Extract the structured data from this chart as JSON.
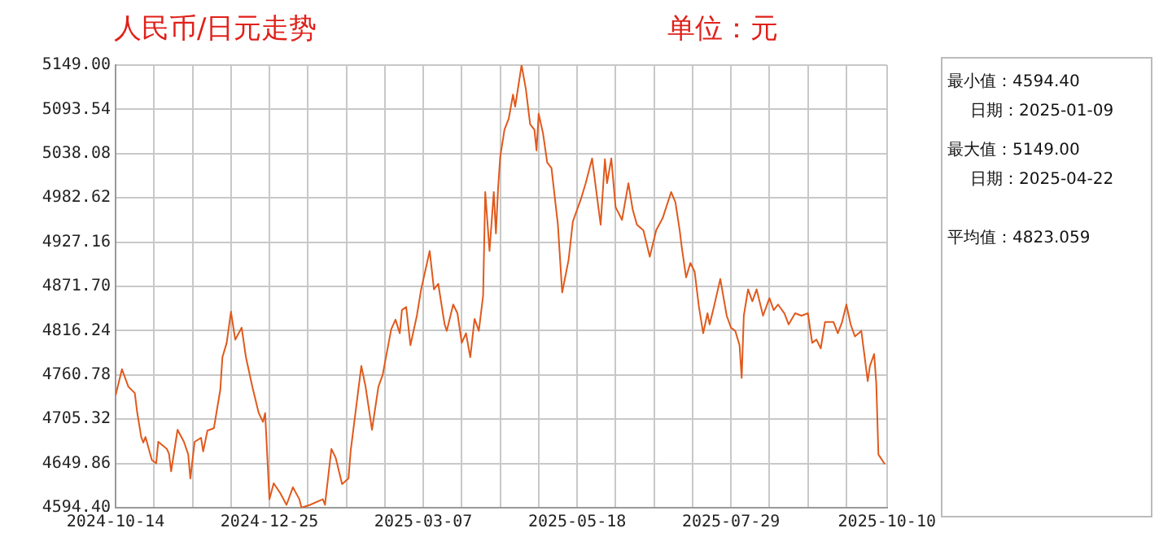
{
  "chart_data": {
    "type": "line",
    "title": "人民币/日元走势",
    "subtitle": "单位：元",
    "annotations": [
      "最小值：4594.40",
      "日期：2025-01-09",
      "最大值：5149.00",
      "日期：2025-04-22",
      "平均值：4823.059"
    ],
    "x": [
      "2024-10-14",
      "2024-10-17",
      "2024-10-20",
      "2024-10-23",
      "2024-10-24",
      "2024-10-26",
      "2024-10-27",
      "2024-10-28",
      "2024-10-31",
      "2024-11-02",
      "2024-11-03",
      "2024-11-07",
      "2024-11-08",
      "2024-11-09",
      "2024-11-12",
      "2024-11-15",
      "2024-11-17",
      "2024-11-18",
      "2024-11-20",
      "2024-11-23",
      "2024-11-24",
      "2024-11-26",
      "2024-11-29",
      "2024-12-02",
      "2024-12-03",
      "2024-12-05",
      "2024-12-07",
      "2024-12-09",
      "2024-12-12",
      "2024-12-14",
      "2024-12-17",
      "2024-12-20",
      "2024-12-22",
      "2024-12-23",
      "2024-12-25",
      "2024-12-27",
      "2024-12-30",
      "2025-01-02",
      "2025-01-05",
      "2025-01-08",
      "2025-01-09",
      "2025-01-13",
      "2025-01-19",
      "2025-01-20",
      "2025-01-23",
      "2025-01-25",
      "2025-01-28",
      "2025-01-31",
      "2025-02-01",
      "2025-02-06",
      "2025-02-08",
      "2025-02-11",
      "2025-02-14",
      "2025-02-16",
      "2025-02-20",
      "2025-02-22",
      "2025-02-24",
      "2025-02-25",
      "2025-02-27",
      "2025-03-01",
      "2025-03-04",
      "2025-03-06",
      "2025-03-10",
      "2025-03-12",
      "2025-03-14",
      "2025-03-17",
      "2025-03-18",
      "2025-03-21",
      "2025-03-23",
      "2025-03-25",
      "2025-03-27",
      "2025-03-29",
      "2025-03-31",
      "2025-04-02",
      "2025-04-04",
      "2025-04-05",
      "2025-04-07",
      "2025-04-09",
      "2025-04-10",
      "2025-04-11",
      "2025-04-12",
      "2025-04-14",
      "2025-04-16",
      "2025-04-18",
      "2025-04-19",
      "2025-04-22",
      "2025-04-24",
      "2025-04-26",
      "2025-04-28",
      "2025-04-29",
      "2025-04-30",
      "2025-05-02",
      "2025-05-04",
      "2025-05-06",
      "2025-05-09",
      "2025-05-11",
      "2025-05-14",
      "2025-05-16",
      "2025-05-20",
      "2025-05-22",
      "2025-05-25",
      "2025-05-29",
      "2025-05-31",
      "2025-06-01",
      "2025-06-03",
      "2025-06-05",
      "2025-06-08",
      "2025-06-11",
      "2025-06-13",
      "2025-06-15",
      "2025-06-18",
      "2025-06-21",
      "2025-06-24",
      "2025-06-27",
      "2025-07-01",
      "2025-07-03",
      "2025-07-05",
      "2025-07-06",
      "2025-07-08",
      "2025-07-10",
      "2025-07-12",
      "2025-07-14",
      "2025-07-16",
      "2025-07-18",
      "2025-07-19",
      "2025-07-21",
      "2025-07-24",
      "2025-07-27",
      "2025-07-29",
      "2025-07-31",
      "2025-08-02",
      "2025-08-03",
      "2025-08-04",
      "2025-08-06",
      "2025-08-08",
      "2025-08-10",
      "2025-08-13",
      "2025-08-16",
      "2025-08-18",
      "2025-08-20",
      "2025-08-23",
      "2025-08-25",
      "2025-08-28",
      "2025-08-31",
      "2025-09-03",
      "2025-09-05",
      "2025-09-07",
      "2025-09-09",
      "2025-09-11",
      "2025-09-15",
      "2025-09-17",
      "2025-09-19",
      "2025-09-21",
      "2025-09-23",
      "2025-09-25",
      "2025-09-28",
      "2025-10-01",
      "2025-10-02",
      "2025-10-04",
      "2025-10-05",
      "2025-10-06",
      "2025-10-09"
    ],
    "series": [
      {
        "color": "#e05a1c",
        "values": [
          4735,
          4768,
          4746,
          4738,
          4716,
          4683,
          4676,
          4683,
          4654,
          4650,
          4677,
          4668,
          4662,
          4640,
          4692,
          4677,
          4661,
          4631,
          4677,
          4682,
          4665,
          4691,
          4694,
          4742,
          4783,
          4801,
          4840,
          4805,
          4820,
          4783,
          4746,
          4713,
          4702,
          4713,
          4605,
          4625,
          4613,
          4598,
          4620,
          4605,
          4594.4,
          4598,
          4605,
          4598,
          4668,
          4657,
          4624,
          4631,
          4665,
          4772,
          4746,
          4692,
          4746,
          4761,
          4818,
          4830,
          4813,
          4842,
          4846,
          4798,
          4835,
          4868,
          4916,
          4868,
          4875,
          4824,
          4816,
          4849,
          4838,
          4801,
          4813,
          4783,
          4831,
          4816,
          4860,
          4990,
          4916,
          4990,
          4938,
          4994,
          5034,
          5068,
          5082,
          5112,
          5097,
          5149,
          5119,
          5075,
          5068,
          5042,
          5088,
          5064,
          5027,
          5020,
          4949,
          4864,
          4905,
          4953,
          4983,
          5001,
          5032,
          4949,
          5031,
          5001,
          5032,
          4971,
          4955,
          5001,
          4968,
          4949,
          4942,
          4909,
          4942,
          4957,
          4990,
          4977,
          4942,
          4920,
          4883,
          4901,
          4890,
          4846,
          4813,
          4838,
          4824,
          4846,
          4881,
          4835,
          4820,
          4816,
          4798,
          4757,
          4835,
          4868,
          4853,
          4868,
          4835,
          4857,
          4842,
          4849,
          4838,
          4824,
          4838,
          4835,
          4838,
          4801,
          4805,
          4794,
          4827,
          4827,
          4813,
          4827,
          4849,
          4824,
          4809,
          4816,
          4753,
          4772,
          4787,
          4750,
          4661,
          4649
        ]
      }
    ],
    "xlim": [
      "2024-10-14",
      "2025-10-10"
    ],
    "xticks": [
      {
        "value": "2024-10-14",
        "label": "2024-10-14"
      },
      {
        "value": "2024-11-01",
        "label": null
      },
      {
        "value": "2024-11-19",
        "label": null
      },
      {
        "value": "2024-12-07",
        "label": null
      },
      {
        "value": "2024-12-25",
        "label": "2024-12-25"
      },
      {
        "value": "2025-01-12",
        "label": null
      },
      {
        "value": "2025-01-30",
        "label": null
      },
      {
        "value": "2025-02-17",
        "label": null
      },
      {
        "value": "2025-03-07",
        "label": "2025-03-07"
      },
      {
        "value": "2025-03-25",
        "label": null
      },
      {
        "value": "2025-04-12",
        "label": null
      },
      {
        "value": "2025-04-30",
        "label": null
      },
      {
        "value": "2025-05-18",
        "label": "2025-05-18"
      },
      {
        "value": "2025-06-05",
        "label": null
      },
      {
        "value": "2025-06-23",
        "label": null
      },
      {
        "value": "2025-07-11",
        "label": null
      },
      {
        "value": "2025-07-29",
        "label": "2025-07-29"
      },
      {
        "value": "2025-08-16",
        "label": null
      },
      {
        "value": "2025-09-03",
        "label": null
      },
      {
        "value": "2025-09-21",
        "label": null
      },
      {
        "value": "2025-10-10",
        "label": "2025-10-10"
      }
    ],
    "ylim": [
      4594.4,
      5149
    ],
    "yticks": [
      {
        "value": 4594.4,
        "label": "4594.40"
      },
      {
        "value": 4649.86,
        "label": "4649.86"
      },
      {
        "value": 4705.32,
        "label": "4705.32"
      },
      {
        "value": 4760.78,
        "label": "4760.78"
      },
      {
        "value": 4816.24,
        "label": "4816.24"
      },
      {
        "value": 4871.7,
        "label": "4871.70"
      },
      {
        "value": 4927.16,
        "label": "4927.16"
      },
      {
        "value": 4982.62,
        "label": "4982.62"
      },
      {
        "value": 5038.08,
        "label": "5038.08"
      },
      {
        "value": 5093.54,
        "label": "5093.54"
      },
      {
        "value": 5149,
        "label": "5149.00"
      }
    ],
    "grid": true,
    "legend": false,
    "marker": "none",
    "line_style": "solid"
  }
}
